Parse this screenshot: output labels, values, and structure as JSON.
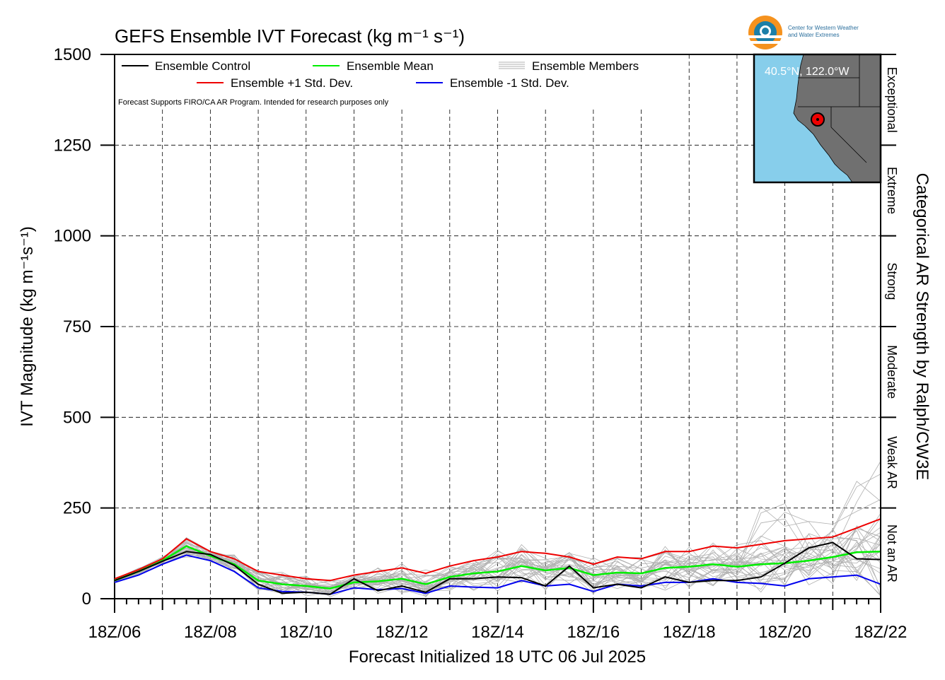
{
  "chart_data": {
    "type": "line",
    "title": "GEFS Ensemble IVT Forecast (kg m⁻¹ s⁻¹)",
    "ylabel": "IVT Magnitude (kg m⁻¹s⁻¹)",
    "xlabel": "Forecast Initialized 18 UTC 06 Jul 2025",
    "right_label": "Categorical AR Strength by Ralph/CW3E",
    "ylim": [
      0,
      1500
    ],
    "yticks": [
      0,
      250,
      500,
      750,
      1000,
      1250,
      1500
    ],
    "xlim": [
      0,
      16
    ],
    "xticks": [
      {
        "x": 0,
        "label": "18Z/06"
      },
      {
        "x": 2,
        "label": "18Z/08"
      },
      {
        "x": 4,
        "label": "18Z/10"
      },
      {
        "x": 6,
        "label": "18Z/12"
      },
      {
        "x": 8,
        "label": "18Z/14"
      },
      {
        "x": 10,
        "label": "18Z/16"
      },
      {
        "x": 12,
        "label": "18Z/18"
      },
      {
        "x": 14,
        "label": "18Z/20"
      },
      {
        "x": 16,
        "label": "18Z/22"
      }
    ],
    "grid": true,
    "legend_placement": "top",
    "note": "Forecast Supports FIRO/CA AR Program. Intended for research purposes only",
    "categories": [
      {
        "label": "Not an AR",
        "from": 0,
        "to": 250
      },
      {
        "label": "Weak AR",
        "from": 250,
        "to": 500
      },
      {
        "label": "Moderate",
        "from": 500,
        "to": 750
      },
      {
        "label": "Strong",
        "from": 750,
        "to": 1000
      },
      {
        "label": "Extreme",
        "from": 1000,
        "to": 1250
      },
      {
        "label": "Exceptional",
        "from": 1250,
        "to": 1500
      }
    ],
    "series": [
      {
        "name": "Ensemble Control",
        "color": "#000000",
        "points": [
          [
            0,
            50
          ],
          [
            0.5,
            75
          ],
          [
            1,
            103
          ],
          [
            1.5,
            130
          ],
          [
            2,
            122
          ],
          [
            2.5,
            92
          ],
          [
            3,
            40
          ],
          [
            3.5,
            15
          ],
          [
            4,
            18
          ],
          [
            4.5,
            12
          ],
          [
            5,
            55
          ],
          [
            5.5,
            22
          ],
          [
            6,
            35
          ],
          [
            6.5,
            18
          ],
          [
            7,
            55
          ],
          [
            7.5,
            55
          ],
          [
            8,
            60
          ],
          [
            8.5,
            58
          ],
          [
            9,
            35
          ],
          [
            9.5,
            90
          ],
          [
            10,
            30
          ],
          [
            10.5,
            40
          ],
          [
            11,
            30
          ],
          [
            11.5,
            60
          ],
          [
            12,
            45
          ],
          [
            12.5,
            50
          ],
          [
            13,
            50
          ],
          [
            13.5,
            60
          ],
          [
            14,
            98
          ],
          [
            14.5,
            140
          ],
          [
            15,
            155
          ],
          [
            15.5,
            110
          ],
          [
            16,
            108
          ]
        ]
      },
      {
        "name": "Ensemble Mean",
        "color": "#00ee00",
        "points": [
          [
            0,
            50
          ],
          [
            0.5,
            75
          ],
          [
            1,
            105
          ],
          [
            1.5,
            145
          ],
          [
            2,
            118
          ],
          [
            2.5,
            95
          ],
          [
            3,
            50
          ],
          [
            3.5,
            40
          ],
          [
            4,
            35
          ],
          [
            4.5,
            28
          ],
          [
            5,
            45
          ],
          [
            5.5,
            48
          ],
          [
            6,
            55
          ],
          [
            6.5,
            40
          ],
          [
            7,
            60
          ],
          [
            7.5,
            70
          ],
          [
            8,
            75
          ],
          [
            8.5,
            90
          ],
          [
            9,
            78
          ],
          [
            9.5,
            85
          ],
          [
            10,
            65
          ],
          [
            10.5,
            72
          ],
          [
            11,
            70
          ],
          [
            11.5,
            85
          ],
          [
            12,
            88
          ],
          [
            12.5,
            95
          ],
          [
            13,
            88
          ],
          [
            13.5,
            95
          ],
          [
            14,
            98
          ],
          [
            14.5,
            105
          ],
          [
            15,
            115
          ],
          [
            15.5,
            128
          ],
          [
            16,
            130
          ]
        ]
      },
      {
        "name": "Ensemble +1 Std. Dev.",
        "color": "#ee0000",
        "points": [
          [
            0,
            55
          ],
          [
            0.5,
            80
          ],
          [
            1,
            110
          ],
          [
            1.5,
            165
          ],
          [
            2,
            130
          ],
          [
            2.5,
            110
          ],
          [
            3,
            75
          ],
          [
            3.5,
            65
          ],
          [
            4,
            55
          ],
          [
            4.5,
            50
          ],
          [
            5,
            65
          ],
          [
            5.5,
            75
          ],
          [
            6,
            85
          ],
          [
            6.5,
            70
          ],
          [
            7,
            90
          ],
          [
            7.5,
            105
          ],
          [
            8,
            115
          ],
          [
            8.5,
            130
          ],
          [
            9,
            125
          ],
          [
            9.5,
            115
          ],
          [
            10,
            95
          ],
          [
            10.5,
            115
          ],
          [
            11,
            110
          ],
          [
            11.5,
            130
          ],
          [
            12,
            130
          ],
          [
            12.5,
            145
          ],
          [
            13,
            140
          ],
          [
            13.5,
            150
          ],
          [
            14,
            160
          ],
          [
            14.5,
            165
          ],
          [
            15,
            170
          ],
          [
            15.5,
            195
          ],
          [
            16,
            220
          ]
        ]
      },
      {
        "name": "Ensemble -1 Std. Dev.",
        "color": "#0000ee",
        "points": [
          [
            0,
            45
          ],
          [
            0.5,
            65
          ],
          [
            1,
            95
          ],
          [
            1.5,
            120
          ],
          [
            2,
            105
          ],
          [
            2.5,
            75
          ],
          [
            3,
            30
          ],
          [
            3.5,
            20
          ],
          [
            4,
            18
          ],
          [
            4.5,
            12
          ],
          [
            5,
            30
          ],
          [
            5.5,
            25
          ],
          [
            6,
            28
          ],
          [
            6.5,
            15
          ],
          [
            7,
            35
          ],
          [
            7.5,
            32
          ],
          [
            8,
            30
          ],
          [
            8.5,
            50
          ],
          [
            9,
            35
          ],
          [
            9.5,
            40
          ],
          [
            10,
            20
          ],
          [
            10.5,
            40
          ],
          [
            11,
            35
          ],
          [
            11.5,
            45
          ],
          [
            12,
            45
          ],
          [
            12.5,
            55
          ],
          [
            13,
            45
          ],
          [
            13.5,
            42
          ],
          [
            14,
            35
          ],
          [
            14.5,
            55
          ],
          [
            15,
            60
          ],
          [
            15.5,
            65
          ],
          [
            16,
            40
          ]
        ]
      }
    ],
    "ensemble_members_label": "Ensemble Members",
    "ensemble_members_color": "#b0b0b0"
  },
  "inset_map": {
    "location_label": "40.5°N, 122.0°W"
  },
  "logo": {
    "line1": "Center for Western Weather",
    "line2": "and Water Extremes"
  }
}
